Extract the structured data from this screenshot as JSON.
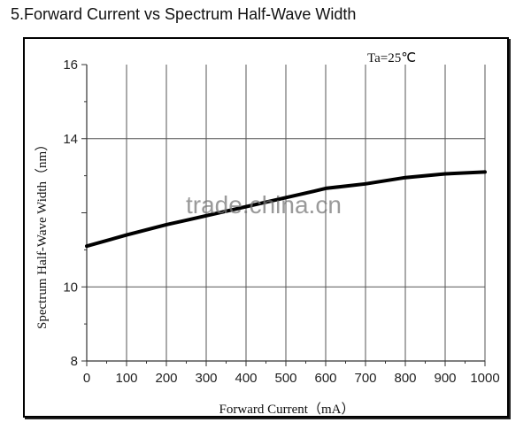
{
  "title": "5.Forward Current vs Spectrum Half-Wave Width",
  "annotation": "Ta=25℃",
  "watermark": "trade.china.cn",
  "chart_data": {
    "type": "line",
    "title": "5.Forward Current vs Spectrum Half-Wave Width",
    "xlabel": "Forward Current（mA）",
    "ylabel": "Spectrum Half-Wave Width（nm）",
    "xlim": [
      0,
      1000
    ],
    "ylim": [
      8,
      16
    ],
    "x_ticks": [
      0,
      100,
      200,
      300,
      400,
      500,
      600,
      700,
      800,
      900,
      1000
    ],
    "y_ticks": [
      8,
      10,
      14,
      16
    ],
    "grid": true,
    "annotations": [
      "Ta=25℃"
    ],
    "series": [
      {
        "name": "Spectrum Half-Wave Width",
        "x": [
          0,
          100,
          200,
          250,
          570,
          600,
          700,
          800,
          900,
          1000
        ],
        "values": [
          11.1,
          11.4,
          11.68,
          11.8,
          12.58,
          12.66,
          12.78,
          12.95,
          13.05,
          13.1
        ]
      }
    ]
  }
}
